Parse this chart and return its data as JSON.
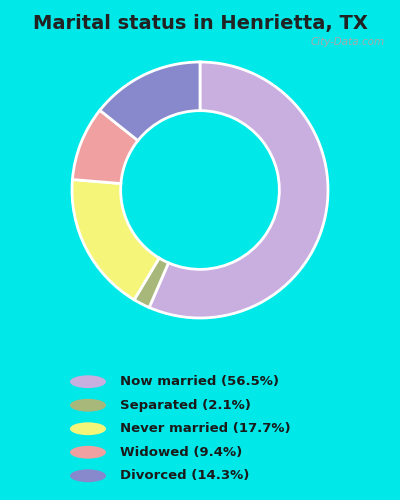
{
  "title": "Marital status in Henrietta, TX",
  "values": [
    56.5,
    2.1,
    17.7,
    9.4,
    14.3
  ],
  "colors": [
    "#c9aee0",
    "#a8b87a",
    "#f5f57a",
    "#f0a0a0",
    "#8888cc"
  ],
  "legend_labels": [
    "Now married (56.5%)",
    "Separated (2.1%)",
    "Never married (17.7%)",
    "Widowed (9.4%)",
    "Divorced (14.3%)"
  ],
  "background_cyan": "#00e8e8",
  "background_chart": "#d8f0dc",
  "title_fontsize": 14,
  "title_color": "#222222",
  "watermark": "City-Data.com",
  "donut_width": 0.38,
  "startangle": 90
}
